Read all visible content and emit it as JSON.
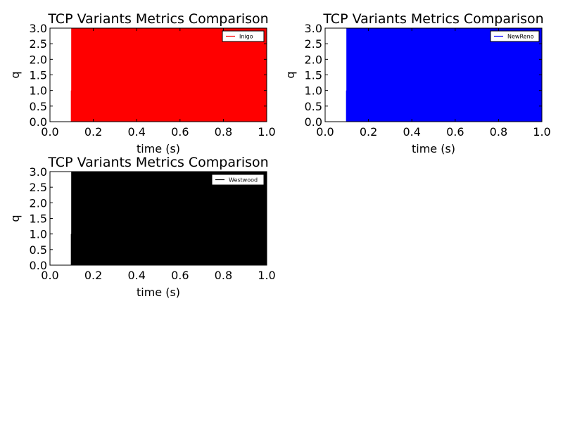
{
  "chart_data": [
    {
      "type": "line",
      "title": "TCP Variants Metrics Comparison",
      "xlabel": "time (s)",
      "ylabel": "q",
      "xlim": [
        0.0,
        1.0
      ],
      "ylim": [
        0.0,
        3.0
      ],
      "xticks": [
        "0.0",
        "0.2",
        "0.4",
        "0.6",
        "0.8",
        "1.0"
      ],
      "yticks": [
        "0.0",
        "0.5",
        "1.0",
        "1.5",
        "2.0",
        "2.5",
        "3.0"
      ],
      "legend_position": "top-right",
      "grid": false,
      "series": [
        {
          "name": "Inigo",
          "color": "#ff0000",
          "fill_from_x": 0.098,
          "fill_to_x": 1.0,
          "min_y": 0.0,
          "max_y": 3.0,
          "start": [
            [
              0.0,
              0.0
            ],
            [
              0.098,
              0.0
            ],
            [
              0.098,
              1.0
            ]
          ]
        }
      ]
    },
    {
      "type": "line",
      "title": "TCP Variants Metrics Comparison",
      "xlabel": "time (s)",
      "ylabel": "q",
      "xlim": [
        0.0,
        1.0
      ],
      "ylim": [
        0.0,
        3.0
      ],
      "xticks": [
        "0.0",
        "0.2",
        "0.4",
        "0.6",
        "0.8",
        "1.0"
      ],
      "yticks": [
        "0.0",
        "0.5",
        "1.0",
        "1.5",
        "2.0",
        "2.5",
        "3.0"
      ],
      "legend_position": "top-right",
      "grid": false,
      "series": [
        {
          "name": "NewReno",
          "color": "#0000ff",
          "fill_from_x": 0.098,
          "fill_to_x": 1.0,
          "min_y": 0.0,
          "max_y": 3.0,
          "start": [
            [
              0.0,
              0.0
            ],
            [
              0.098,
              0.0
            ],
            [
              0.098,
              1.0
            ]
          ]
        }
      ]
    },
    {
      "type": "line",
      "title": "TCP Variants Metrics Comparison",
      "xlabel": "time (s)",
      "ylabel": "q",
      "xlim": [
        0.0,
        1.0
      ],
      "ylim": [
        0.0,
        3.0
      ],
      "xticks": [
        "0.0",
        "0.2",
        "0.4",
        "0.6",
        "0.8",
        "1.0"
      ],
      "yticks": [
        "0.0",
        "0.5",
        "1.0",
        "1.5",
        "2.0",
        "2.5",
        "3.0"
      ],
      "legend_position": "top-right",
      "grid": false,
      "series": [
        {
          "name": "Westwood",
          "color": "#000000",
          "fill_from_x": 0.098,
          "fill_to_x": 1.0,
          "min_y": 0.0,
          "max_y": 3.0,
          "start": [
            [
              0.0,
              0.0
            ],
            [
              0.098,
              0.0
            ],
            [
              0.098,
              1.0
            ]
          ]
        }
      ]
    }
  ]
}
